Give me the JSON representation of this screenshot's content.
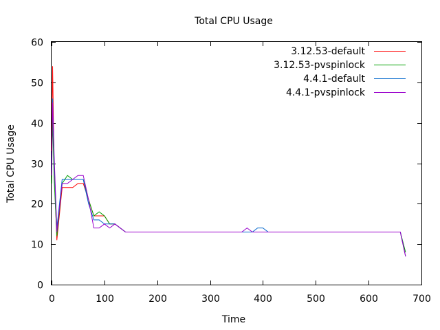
{
  "chart_data": {
    "type": "line",
    "title": "Total CPU Usage",
    "xlabel": "Time",
    "ylabel": "Total CPU Usage",
    "xlim": [
      0,
      700
    ],
    "ylim": [
      0,
      60
    ],
    "xticks": [
      0,
      100,
      200,
      300,
      400,
      500,
      600,
      700
    ],
    "yticks": [
      0,
      10,
      20,
      30,
      40,
      50,
      60
    ],
    "grid": false,
    "legend": "top-right",
    "series": [
      {
        "name": "3.12.53-default",
        "color": "#ff0000",
        "x": [
          0,
          2,
          5,
          10,
          20,
          30,
          40,
          50,
          60,
          70,
          80,
          90,
          100,
          110,
          120,
          140,
          200,
          300,
          360,
          400,
          500,
          600,
          660,
          670
        ],
        "y": [
          33,
          54,
          28,
          11,
          24,
          24,
          24,
          25,
          25,
          21,
          17,
          17,
          17,
          15,
          15,
          13,
          13,
          13,
          13,
          13,
          13,
          13,
          13,
          7
        ]
      },
      {
        "name": "3.12.53-pvspinlock",
        "color": "#00a000",
        "x": [
          0,
          2,
          5,
          10,
          20,
          30,
          40,
          50,
          60,
          70,
          80,
          90,
          100,
          110,
          120,
          140,
          200,
          300,
          360,
          400,
          500,
          600,
          660,
          670
        ],
        "y": [
          25,
          41,
          26,
          12,
          25,
          27,
          26,
          26,
          26,
          21,
          17,
          18,
          17,
          15,
          15,
          13,
          13,
          13,
          13,
          13,
          13,
          13,
          13,
          8
        ]
      },
      {
        "name": "4.4.1-default",
        "color": "#0066cc",
        "x": [
          0,
          2,
          5,
          10,
          20,
          30,
          40,
          50,
          60,
          70,
          80,
          90,
          100,
          110,
          120,
          140,
          200,
          300,
          360,
          380,
          390,
          400,
          410,
          500,
          600,
          660,
          670
        ],
        "y": [
          28,
          46,
          30,
          14,
          26,
          26,
          26,
          26,
          26,
          20,
          16,
          16,
          15,
          15,
          15,
          13,
          13,
          13,
          13,
          13,
          14,
          14,
          13,
          13,
          13,
          13,
          7
        ]
      },
      {
        "name": "4.4.1-pvspinlock",
        "color": "#9900cc",
        "x": [
          0,
          2,
          5,
          10,
          20,
          30,
          40,
          50,
          60,
          70,
          80,
          90,
          100,
          110,
          120,
          140,
          200,
          300,
          360,
          370,
          380,
          400,
          500,
          600,
          660,
          670
        ],
        "y": [
          27,
          45,
          32,
          13,
          25,
          25,
          26,
          27,
          27,
          21,
          14,
          14,
          15,
          14,
          15,
          13,
          13,
          13,
          13,
          14,
          13,
          13,
          13,
          13,
          13,
          7
        ]
      }
    ]
  }
}
